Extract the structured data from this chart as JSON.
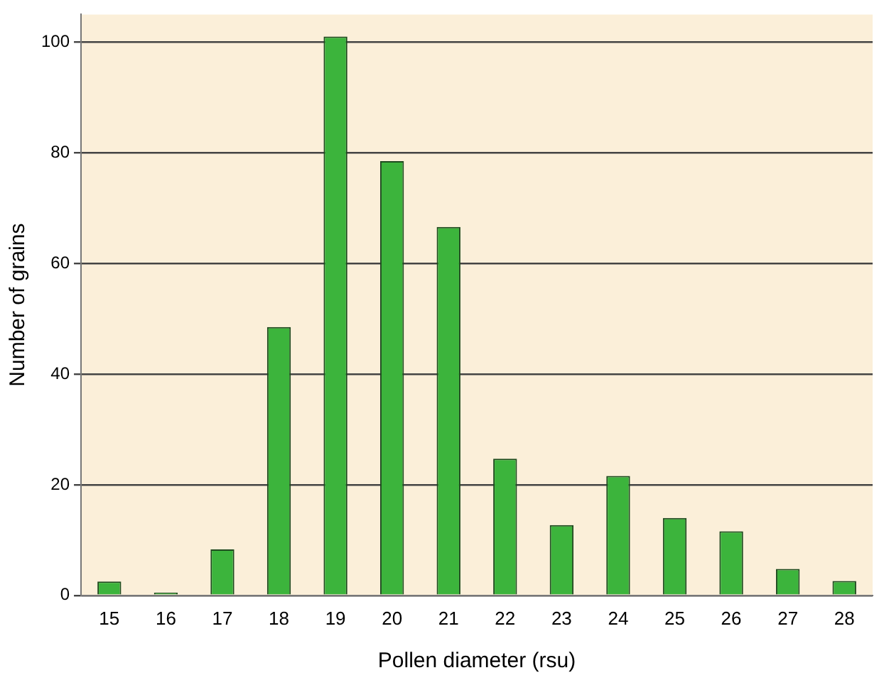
{
  "chart_data": {
    "type": "bar",
    "xlabel": "Pollen diameter (rsu)",
    "ylabel": "Number of grains",
    "categories": [
      "15",
      "16",
      "17",
      "18",
      "19",
      "20",
      "21",
      "22",
      "23",
      "24",
      "25",
      "26",
      "27",
      "28"
    ],
    "values": [
      2.5,
      0.5,
      8.3,
      48.5,
      101,
      78.5,
      66.6,
      24.7,
      12.7,
      21.6,
      14,
      11.6,
      4.8,
      2.6
    ],
    "color": "#3cb43c",
    "ylim": [
      0,
      105
    ],
    "yticks": [
      0,
      20,
      40,
      60,
      80,
      100
    ],
    "grid": "y",
    "legend": false
  }
}
